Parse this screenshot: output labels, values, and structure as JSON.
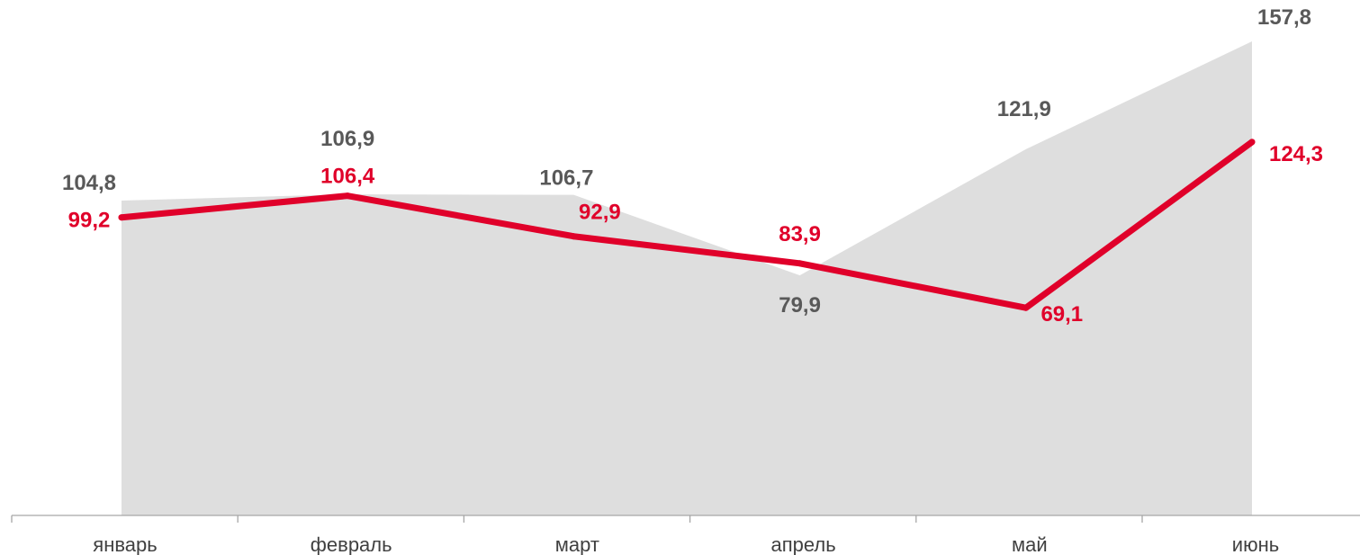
{
  "chart_data": {
    "type": "area",
    "title": "",
    "xlabel": "",
    "ylabel": "",
    "categories": [
      "январь",
      "февраль",
      "март",
      "апрель",
      "май",
      "июнь"
    ],
    "series": [
      {
        "type": "area",
        "values": [
          104.8,
          106.9,
          106.7,
          79.9,
          121.9,
          157.8
        ],
        "labels": [
          "104,8",
          "106,9",
          "106,7",
          "79,9",
          "121,9",
          "157,8"
        ],
        "color": "#dedede"
      },
      {
        "type": "line",
        "values": [
          99.2,
          106.4,
          92.9,
          83.9,
          69.1,
          124.3
        ],
        "labels": [
          "99,2",
          "106,4",
          "92,9",
          "83,9",
          "69,1",
          "124,3"
        ],
        "color": "#e0002a"
      }
    ],
    "ylim": [
      0,
      160
    ],
    "grid": false,
    "legend": "none"
  }
}
